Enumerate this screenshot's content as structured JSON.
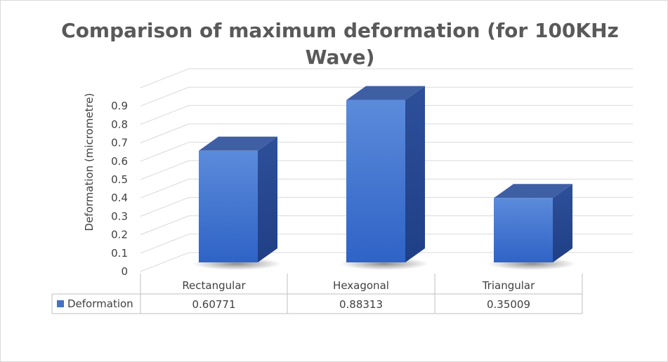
{
  "chart_data": {
    "type": "bar",
    "title": "Comparison of maximum deformation (for 100KHz Wave)",
    "title_lines": [
      "Comparison of maximum deformation (for 100KHz",
      "Wave)"
    ],
    "ylabel": "Deformation (micrometre)",
    "xlabel": "",
    "ylim": [
      0,
      0.9
    ],
    "yticks": [
      0,
      0.1,
      0.2,
      0.3,
      0.4,
      0.5,
      0.6,
      0.7,
      0.8,
      0.9
    ],
    "ytick_labels": [
      "0",
      "0.1",
      "0.2",
      "0.3",
      "0.4",
      "0.5",
      "0.6",
      "0.7",
      "0.8",
      "0.9"
    ],
    "categories": [
      "Rectangular",
      "Hexagonal",
      "Triangular"
    ],
    "series": [
      {
        "name": "Deformation",
        "values": [
          0.60771,
          0.88313,
          0.35009
        ],
        "value_labels": [
          "0.60771",
          "0.88313",
          "0.35009"
        ],
        "color": "#4472C4"
      }
    ],
    "style": "3d-column",
    "grid": true,
    "legend": "data-table"
  }
}
